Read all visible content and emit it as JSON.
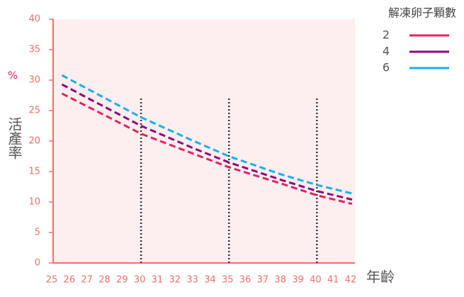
{
  "chart_data": {
    "type": "line",
    "ylabel_unit": "%",
    "ylabel": "活產率",
    "xlabel": "年齡",
    "legend_title": "解凍卵子顆數",
    "x": [
      25.5,
      27,
      30,
      33,
      35,
      38,
      40,
      42
    ],
    "series": [
      {
        "name": "2",
        "color": "#e0245e",
        "values": [
          27.8,
          25.6,
          21.2,
          17.9,
          15.7,
          13.0,
          11.1,
          9.7
        ]
      },
      {
        "name": "4",
        "color": "#8b0a7a",
        "values": [
          29.3,
          27.0,
          22.5,
          18.8,
          16.5,
          13.6,
          11.8,
          10.4
        ]
      },
      {
        "name": "6",
        "color": "#1ab0e8",
        "values": [
          30.8,
          28.5,
          23.9,
          20.0,
          17.5,
          14.5,
          12.8,
          11.4
        ]
      }
    ],
    "reference_lines": {
      "x": [
        30,
        35,
        40
      ],
      "top": 27.3
    },
    "xlim": [
      25,
      42
    ],
    "xticks": [
      25,
      26,
      27,
      28,
      29,
      30,
      31,
      32,
      33,
      34,
      35,
      36,
      37,
      38,
      39,
      40,
      41,
      42
    ],
    "ylim": [
      0,
      40
    ],
    "yticks": [
      0,
      5,
      10,
      15,
      20,
      25,
      30,
      35,
      40
    ],
    "line_style": "dashed",
    "legend_position": "top right"
  }
}
